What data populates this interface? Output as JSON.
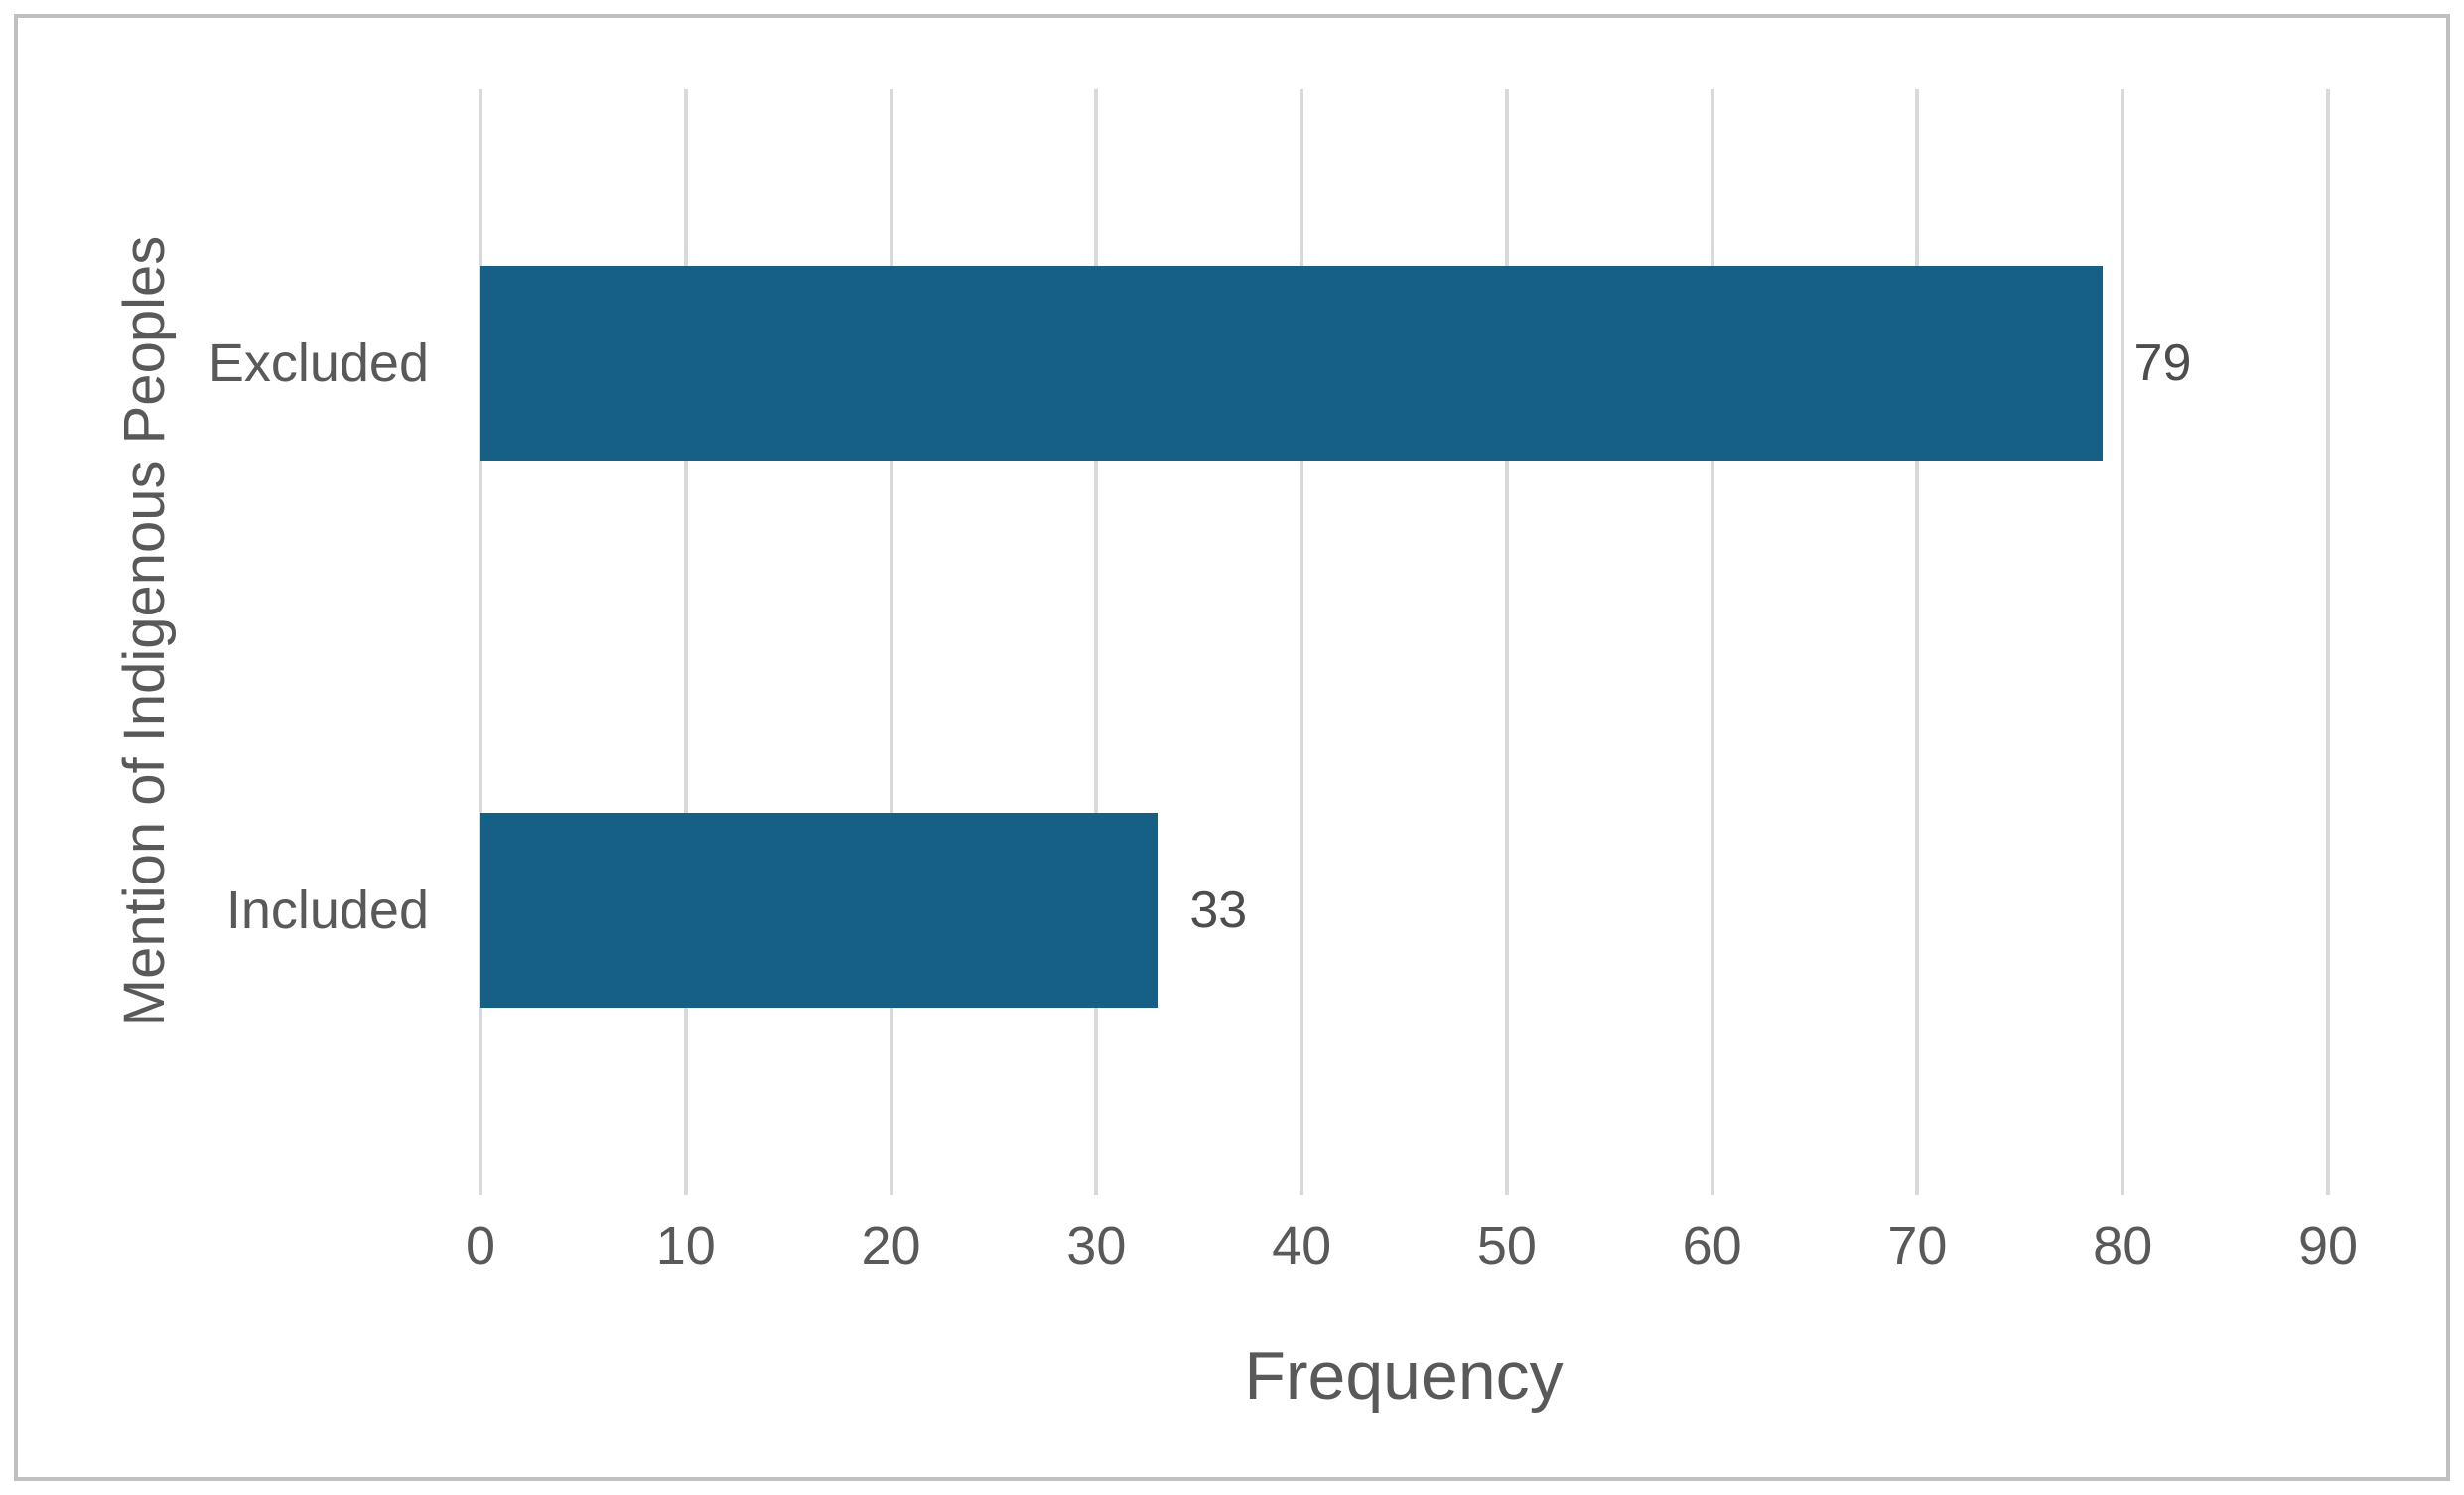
{
  "chart_data": {
    "type": "bar",
    "orientation": "horizontal",
    "title": "",
    "xlabel": "Frequency",
    "ylabel": "Mention of Indigenous Peoples",
    "categories": [
      "Excluded",
      "Included"
    ],
    "values": [
      79,
      33
    ],
    "data_labels": [
      "79",
      "33"
    ],
    "xlim": [
      0,
      90
    ],
    "xticks": [
      0,
      10,
      20,
      30,
      40,
      50,
      60,
      70,
      80,
      90
    ],
    "grid": "vertical-gridlines-only",
    "legend": "none",
    "colors": {
      "bar": "#176085",
      "gridline": "#D9D9D9",
      "axis_text": "#595959",
      "data_label_text": "#4D4D4D",
      "frame_border": "#C0C0C0",
      "background": "#FFFFFF"
    }
  }
}
